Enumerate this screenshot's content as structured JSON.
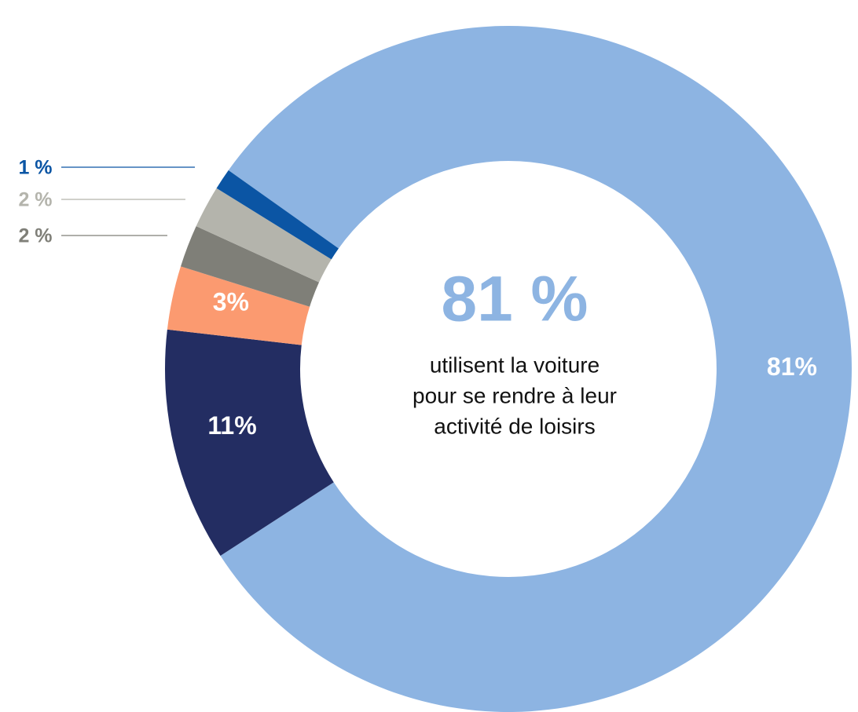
{
  "chart_data": {
    "type": "donut",
    "values": [
      81,
      11,
      3,
      2,
      2,
      1
    ],
    "value_labels": [
      "81%",
      "11%",
      "3%",
      "2 %",
      "2 %",
      "1 %"
    ],
    "colors": [
      "#8db4e2",
      "#232d62",
      "#fb9a70",
      "#7f7f78",
      "#b4b4ac",
      "#0b55a4"
    ],
    "center_value": "81 %",
    "center_text": [
      "utilisent la voiture",
      "pour se rendre à leur",
      "activité de loisirs"
    ]
  }
}
